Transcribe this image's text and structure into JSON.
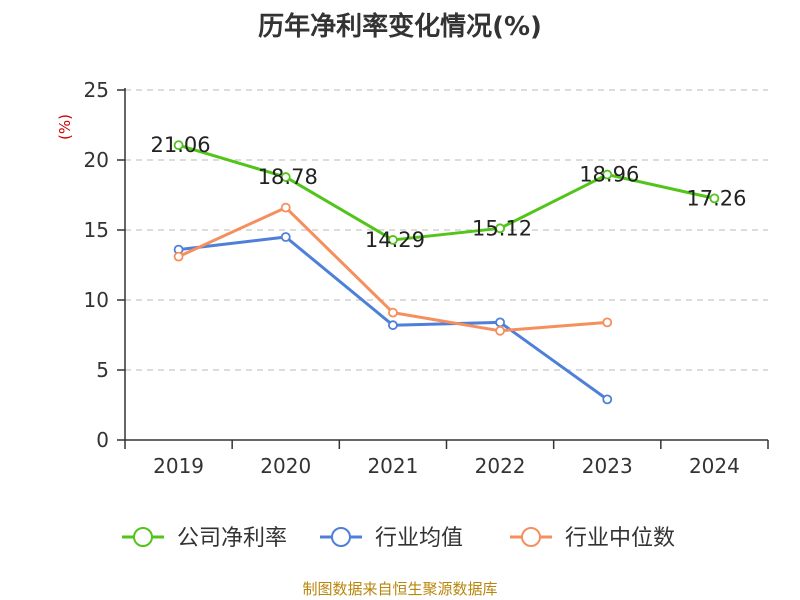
{
  "chart_data": {
    "type": "line",
    "title": "历年净利率变化情况(%)",
    "ylabel": "(%)",
    "xlabel": "",
    "categories": [
      "2019",
      "2020",
      "2021",
      "2022",
      "2023",
      "2024"
    ],
    "ylim": [
      0,
      25
    ],
    "yticks": [
      0,
      5,
      10,
      15,
      20,
      25
    ],
    "grid": true,
    "legend_position": "bottom",
    "series": [
      {
        "name": "公司净利率",
        "color": "#52c41a",
        "values": [
          21.06,
          18.78,
          14.29,
          15.12,
          18.96,
          17.26
        ],
        "show_labels": true,
        "labels": [
          "21.06",
          "18.78",
          "14.29",
          "15.12",
          "18.96",
          "17.26"
        ]
      },
      {
        "name": "行业均值",
        "color": "#4e7fd9",
        "values": [
          13.6,
          14.5,
          8.2,
          8.4,
          2.9,
          null
        ],
        "show_labels": false
      },
      {
        "name": "行业中位数",
        "color": "#f58f5d",
        "values": [
          13.1,
          16.6,
          9.1,
          7.8,
          8.4,
          null
        ],
        "show_labels": false
      }
    ]
  },
  "source_note": "制图数据来自恒生聚源数据库"
}
